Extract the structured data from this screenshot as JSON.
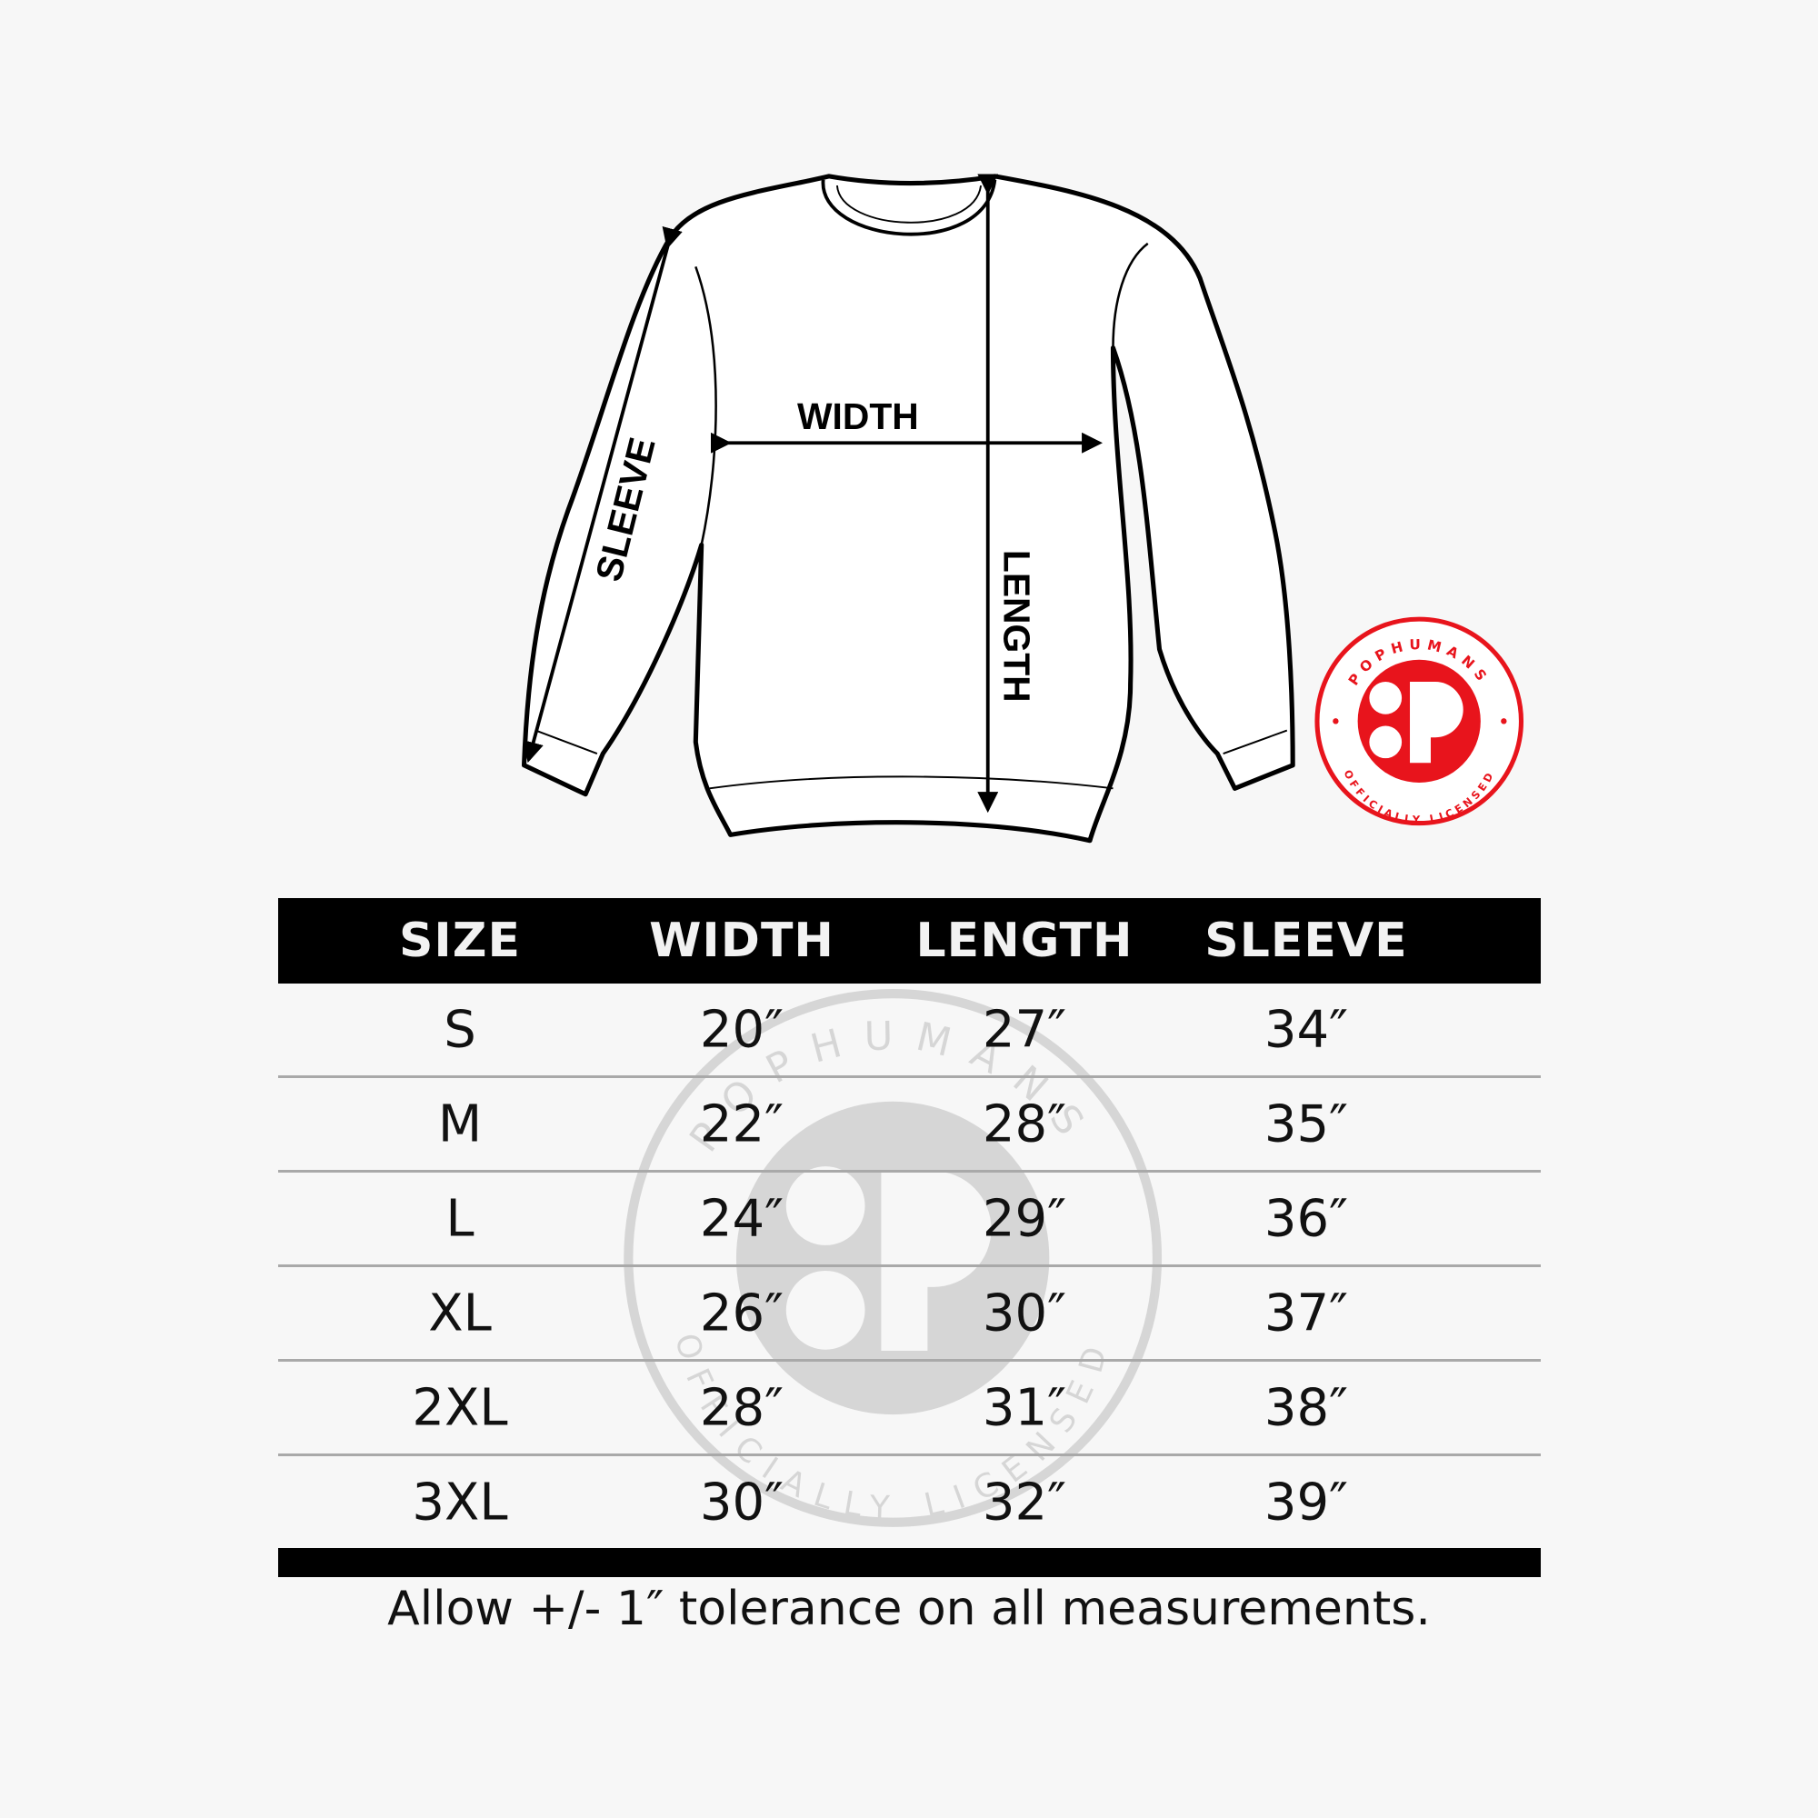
{
  "diagram": {
    "labels": {
      "width": "WIDTH",
      "length": "LENGTH",
      "sleeve": "SLEEVE"
    }
  },
  "logo": {
    "brand": "POPHUMANS",
    "tagline": "OFFICIALLY LICENSED",
    "mark": "P",
    "color": "#e8141c"
  },
  "watermark": {
    "brand": "POPHUMANS",
    "tagline": "OFFICIALLY LICENSED"
  },
  "table": {
    "headers": [
      "SIZE",
      "WIDTH",
      "LENGTH",
      "SLEEVE"
    ],
    "rows": [
      [
        "S",
        "20″",
        "27″",
        "34″"
      ],
      [
        "M",
        "22″",
        "28″",
        "35″"
      ],
      [
        "L",
        "24″",
        "29″",
        "36″"
      ],
      [
        "XL",
        "26″",
        "30″",
        "37″"
      ],
      [
        "2XL",
        "28″",
        "31″",
        "38″"
      ],
      [
        "3XL",
        "30″",
        "32″",
        "39″"
      ]
    ]
  },
  "footer": "Allow +/- 1″ tolerance on all measurements."
}
